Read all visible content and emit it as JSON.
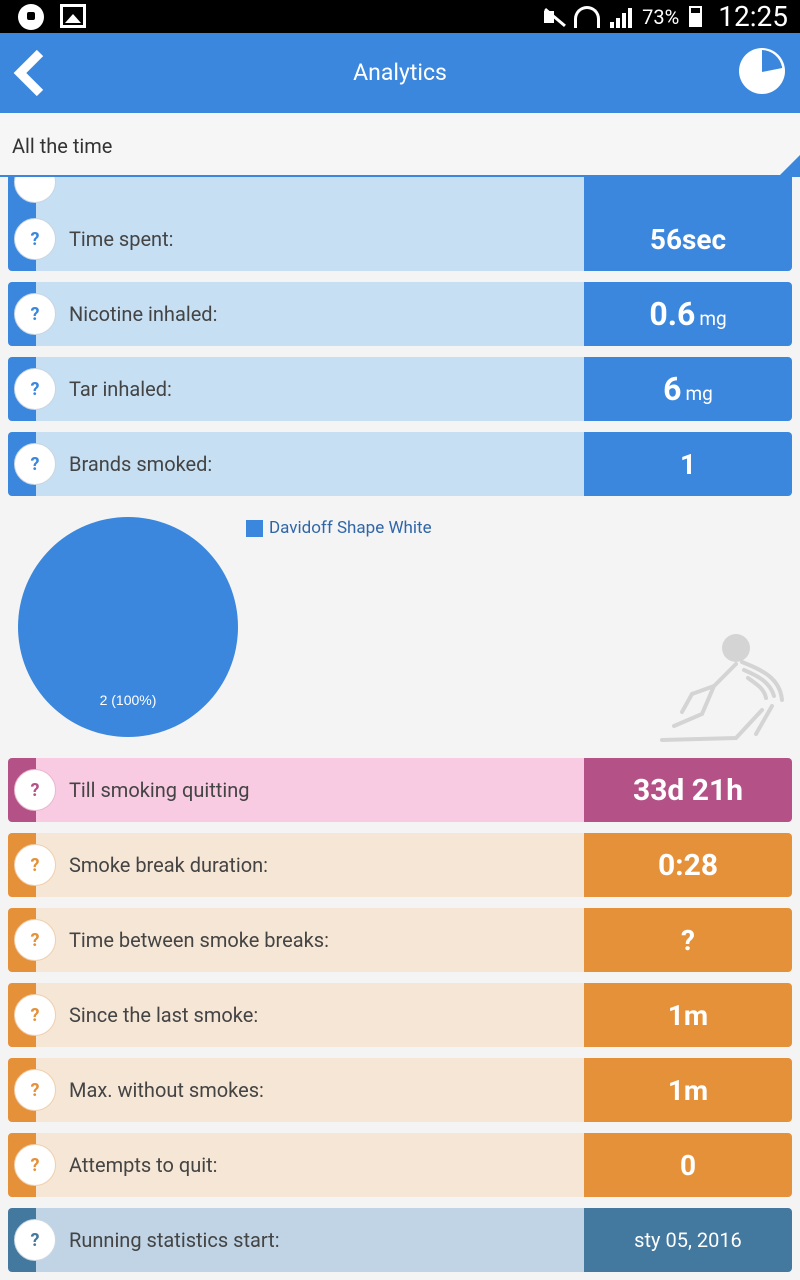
{
  "statusbar": {
    "battery": "73%",
    "time": "12:25"
  },
  "toolbar": {
    "title": "Analytics"
  },
  "period": {
    "selected": "All the time"
  },
  "rows_top": [
    {
      "label": "Time spent:",
      "value": "56sec",
      "unit": ""
    },
    {
      "label": "Nicotine inhaled:",
      "value": "0.6",
      "unit": "mg"
    },
    {
      "label": "Tar inhaled:",
      "value": "6",
      "unit": "mg"
    },
    {
      "label": "Brands smoked:",
      "value": "1",
      "unit": ""
    }
  ],
  "help_symbol": "?",
  "pie": {
    "legend": "Davidoff Shape White",
    "slice_label": "2 (100%)"
  },
  "chart_data": {
    "type": "pie",
    "categories": [
      "Davidoff Shape White"
    ],
    "values": [
      2
    ]
  },
  "quitting": {
    "label": "Till smoking quitting",
    "value": "33d 21h"
  },
  "rows_orange": [
    {
      "label": "Smoke break duration:",
      "value": "0:28"
    },
    {
      "label": "Time between smoke breaks:",
      "value": "?"
    },
    {
      "label": "Since the last smoke:",
      "value": "1m"
    },
    {
      "label": "Max. without smokes:",
      "value": "1m"
    },
    {
      "label": "Attempts to quit:",
      "value": "0"
    }
  ],
  "stats_start": {
    "label": "Running statistics start:",
    "value": "sty 05, 2016"
  },
  "colors": {
    "primary": "#3b87dd",
    "pink": "#b45287",
    "orange": "#e5913a",
    "steel": "#43789f"
  }
}
